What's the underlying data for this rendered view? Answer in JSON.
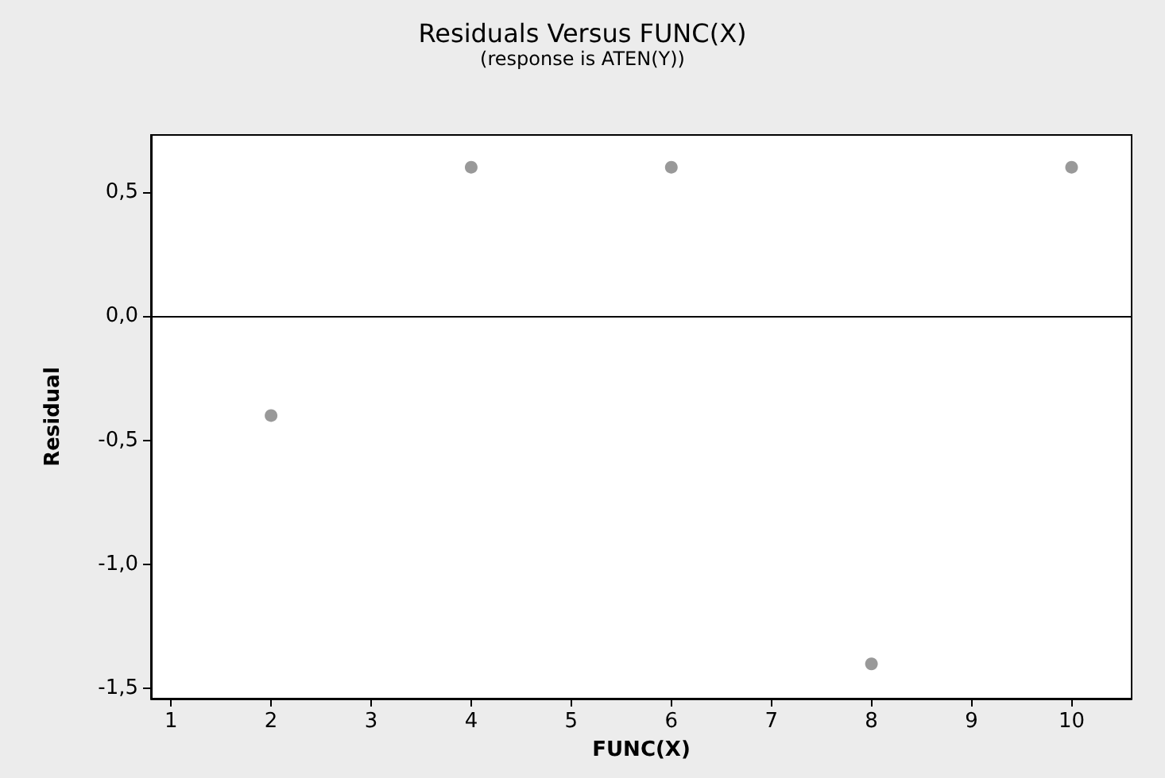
{
  "chart_data": {
    "type": "scatter",
    "title": "Residuals Versus FUNC(X)",
    "subtitle": "(response is ATEN(Y))",
    "xlabel": "FUNC(X)",
    "ylabel": "Residual",
    "x": [
      2,
      4,
      6,
      8,
      10
    ],
    "series": [
      {
        "color": "#808080",
        "values": [
          -0.4,
          0.6,
          0.6,
          -1.4,
          0.6
        ]
      }
    ],
    "xlim": [
      0.8,
      10.6
    ],
    "xticks": [
      1,
      2,
      3,
      4,
      5,
      6,
      7,
      8,
      9,
      10
    ],
    "ylim": [
      -1.54,
      0.73
    ],
    "yticks": [
      {
        "value": -1.5,
        "label": "-1,5"
      },
      {
        "value": -1.0,
        "label": "-1,0"
      },
      {
        "value": -0.5,
        "label": "-0,5"
      },
      {
        "value": 0.0,
        "label": "0,0"
      },
      {
        "value": 0.5,
        "label": "0,5"
      }
    ],
    "ref_lines": [
      {
        "axis": "y",
        "value": 0,
        "color": "#000000"
      }
    ],
    "marker": "circle",
    "grid": false
  }
}
